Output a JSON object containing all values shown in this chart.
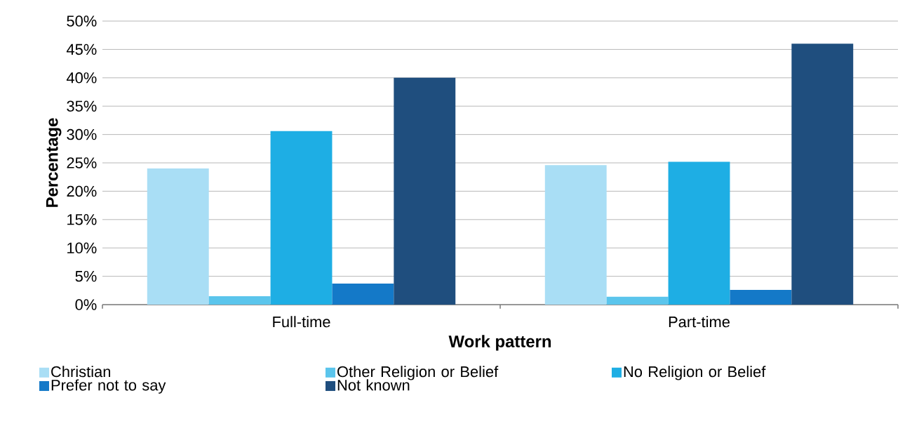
{
  "chart_data": {
    "type": "bar",
    "xlabel": "Work pattern",
    "ylabel": "Percentage",
    "categories": [
      "Full-time",
      "Part-time"
    ],
    "series": [
      {
        "name": "Christian",
        "color": "#a9def5",
        "values": [
          24.0,
          24.6
        ]
      },
      {
        "name": "Other Religion or Belief",
        "color": "#5bc5ec",
        "values": [
          1.5,
          1.4
        ]
      },
      {
        "name": "No Religion or Belief",
        "color": "#1eaee4",
        "values": [
          30.6,
          25.2
        ]
      },
      {
        "name": "Prefer not to say",
        "color": "#1479c8",
        "values": [
          3.7,
          2.6
        ]
      },
      {
        "name": "Not known",
        "color": "#1f4e7e",
        "values": [
          40.0,
          46.0
        ]
      }
    ],
    "ylim": [
      0,
      50
    ],
    "yticks": [
      {
        "value": 0,
        "label": "0%"
      },
      {
        "value": 5,
        "label": "5%"
      },
      {
        "value": 10,
        "label": "10%"
      },
      {
        "value": 15,
        "label": "15%"
      },
      {
        "value": 20,
        "label": "20%"
      },
      {
        "value": 25,
        "label": "25%"
      },
      {
        "value": 30,
        "label": "30%"
      },
      {
        "value": 35,
        "label": "35%"
      },
      {
        "value": 40,
        "label": "40%"
      },
      {
        "value": 45,
        "label": "45%"
      },
      {
        "value": 50,
        "label": "50%"
      }
    ],
    "grid": "y",
    "legend": "bottom"
  }
}
